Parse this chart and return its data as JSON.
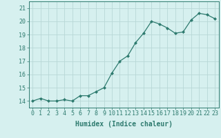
{
  "x": [
    0,
    1,
    2,
    3,
    4,
    5,
    6,
    7,
    8,
    9,
    10,
    11,
    12,
    13,
    14,
    15,
    16,
    17,
    18,
    19,
    20,
    21,
    22,
    23
  ],
  "y": [
    14.0,
    14.2,
    14.0,
    14.0,
    14.1,
    14.0,
    14.4,
    14.4,
    14.7,
    15.0,
    16.1,
    17.0,
    17.4,
    18.4,
    19.1,
    20.0,
    19.8,
    19.5,
    19.1,
    19.2,
    20.1,
    20.6,
    20.5,
    20.2
  ],
  "line_color": "#2d7a6e",
  "marker": "D",
  "marker_size": 2,
  "bg_color": "#d6f0ef",
  "grid_color": "#b8d8d6",
  "xlabel": "Humidex (Indice chaleur)",
  "xlabel_fontsize": 7,
  "ylabel_ticks": [
    14,
    15,
    16,
    17,
    18,
    19,
    20,
    21
  ],
  "xlim": [
    -0.5,
    23.5
  ],
  "ylim": [
    13.5,
    21.5
  ],
  "tick_fontsize": 6,
  "title": ""
}
